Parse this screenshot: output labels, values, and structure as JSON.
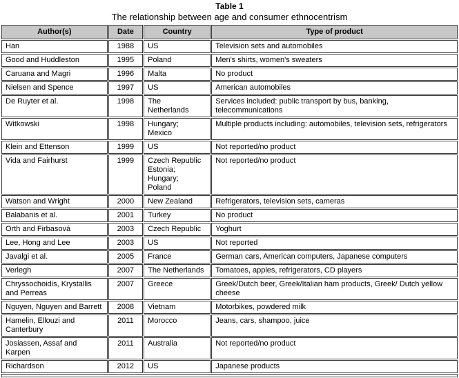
{
  "title": "Table 1",
  "subtitle": "The relationship between age and consumer ethnocentrism",
  "table": {
    "headers": [
      "Author(s)",
      "Date",
      "Country",
      "Type of product"
    ],
    "header_bg": "#c7c7c7",
    "border_color": "#3c3c3c",
    "rows": [
      {
        "author": "Han",
        "date": "1988",
        "country": "US",
        "product": "Television sets and automobiles"
      },
      {
        "author": "Good and Huddleston",
        "date": "1995",
        "country": "Poland",
        "product": "Men's shirts, women's sweaters"
      },
      {
        "author": "Caruana and Magri",
        "date": "1996",
        "country": "Malta",
        "product": "No product"
      },
      {
        "author": "Nielsen and Spence",
        "date": "1997",
        "country": "US",
        "product": "American automobiles"
      },
      {
        "author": "De Ruyter et al.",
        "date": "1998",
        "country": "The\nNetherlands",
        "product": "Services included: public transport by bus, banking, telecommunications"
      },
      {
        "author": "Witkowski",
        "date": "1998",
        "country": "Hungary;\nMexico",
        "product": "Multiple products including: automobiles, television sets, refrigerators"
      },
      {
        "author": "Klein and Ettenson",
        "date": "1999",
        "country": "US",
        "product": "Not reported/no product"
      },
      {
        "author": "Vida and Fairhurst",
        "date": "1999",
        "country": "Czech Republic\nEstonia;\nHungary;\nPoland",
        "product": "Not reported/no product"
      },
      {
        "author": "Watson and Wright",
        "date": "2000",
        "country": "New Zealand",
        "product": "Refrigerators, television sets, cameras"
      },
      {
        "author": "Balabanis et al.",
        "date": "2001",
        "country": "Turkey",
        "product": "No product"
      },
      {
        "author": "Orth and Firbasová",
        "date": "2003",
        "country": "Czech Republic",
        "product": "Yoghurt"
      },
      {
        "author": "Lee, Hong and Lee",
        "date": "2003",
        "country": "US",
        "product": "Not reported"
      },
      {
        "author": "Javalgi et al.",
        "date": "2005",
        "country": "France",
        "product": "German cars, American computers, Japanese computers"
      },
      {
        "author": "Verlegh",
        "date": "2007",
        "country": "The Netherlands",
        "product": "Tomatoes, apples, refrigerators, CD players"
      },
      {
        "author": "Chryssochoidis, Krystallis and Perreas",
        "date": "2007",
        "country": "Greece",
        "product": "Greek/Dutch beer, Greek/Italian ham products, Greek/ Dutch yellow cheese"
      },
      {
        "author": "Nguyen, Nguyen and Barrett",
        "date": "2008",
        "country": "Vietnam",
        "product": "Motorbikes, powdered milk"
      },
      {
        "author": "Hamelin, Ellouzi and Canterbury",
        "date": "2011",
        "country": "Morocco",
        "product": "Jeans, cars, shampoo, juice"
      },
      {
        "author": "Josiassen, Assaf and Karpen",
        "date": "2011",
        "country": "Australia",
        "product": "Not reported/no product"
      },
      {
        "author": "Richardson",
        "date": "2012",
        "country": "US",
        "product": "Japanese products"
      }
    ]
  }
}
